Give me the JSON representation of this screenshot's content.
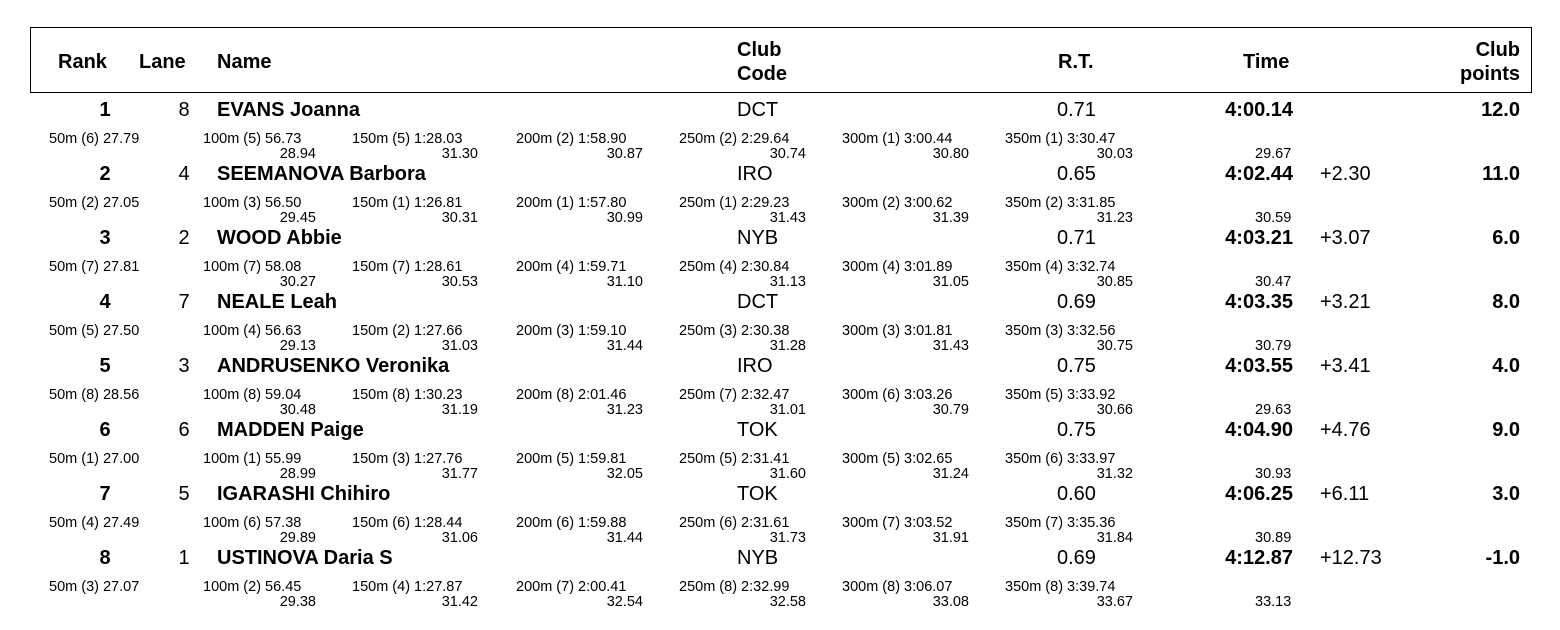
{
  "headers": {
    "rank": "Rank",
    "lane": "Lane",
    "name": "Name",
    "club_code_1": "Club",
    "club_code_2": "Code",
    "rt": "R.T.",
    "time": "Time",
    "club_points_1": "Club",
    "club_points_2": "points"
  },
  "rows": [
    {
      "rank": "1",
      "lane": "8",
      "name": "EVANS Joanna",
      "club": "DCT",
      "rt": "0.71",
      "time": "4:00.14",
      "behind": "",
      "points": "12.0",
      "splits": [
        {
          "cum": "50m (6) 27.79",
          "lap": ""
        },
        {
          "cum": "100m (5) 56.73",
          "lap": "28.94"
        },
        {
          "cum": "150m (5) 1:28.03",
          "lap": "31.30"
        },
        {
          "cum": "200m (2) 1:58.90",
          "lap": "30.87"
        },
        {
          "cum": "250m (2) 2:29.64",
          "lap": "30.74"
        },
        {
          "cum": "300m (1) 3:00.44",
          "lap": "30.80"
        },
        {
          "cum": "350m (1) 3:30.47",
          "lap": "30.03"
        },
        {
          "cum": "",
          "lap": "29.67"
        }
      ]
    },
    {
      "rank": "2",
      "lane": "4",
      "name": "SEEMANOVA Barbora",
      "club": "IRO",
      "rt": "0.65",
      "time": "4:02.44",
      "behind": "+2.30",
      "points": "11.0",
      "splits": [
        {
          "cum": "50m (2) 27.05",
          "lap": ""
        },
        {
          "cum": "100m (3) 56.50",
          "lap": "29.45"
        },
        {
          "cum": "150m (1) 1:26.81",
          "lap": "30.31"
        },
        {
          "cum": "200m (1) 1:57.80",
          "lap": "30.99"
        },
        {
          "cum": "250m (1) 2:29.23",
          "lap": "31.43"
        },
        {
          "cum": "300m (2) 3:00.62",
          "lap": "31.39"
        },
        {
          "cum": "350m (2) 3:31.85",
          "lap": "31.23"
        },
        {
          "cum": "",
          "lap": "30.59"
        }
      ]
    },
    {
      "rank": "3",
      "lane": "2",
      "name": "WOOD Abbie",
      "club": "NYB",
      "rt": "0.71",
      "time": "4:03.21",
      "behind": "+3.07",
      "points": "6.0",
      "splits": [
        {
          "cum": "50m (7) 27.81",
          "lap": ""
        },
        {
          "cum": "100m (7) 58.08",
          "lap": "30.27"
        },
        {
          "cum": "150m (7) 1:28.61",
          "lap": "30.53"
        },
        {
          "cum": "200m (4) 1:59.71",
          "lap": "31.10"
        },
        {
          "cum": "250m (4) 2:30.84",
          "lap": "31.13"
        },
        {
          "cum": "300m (4) 3:01.89",
          "lap": "31.05"
        },
        {
          "cum": "350m (4) 3:32.74",
          "lap": "30.85"
        },
        {
          "cum": "",
          "lap": "30.47"
        }
      ]
    },
    {
      "rank": "4",
      "lane": "7",
      "name": "NEALE Leah",
      "club": "DCT",
      "rt": "0.69",
      "time": "4:03.35",
      "behind": "+3.21",
      "points": "8.0",
      "splits": [
        {
          "cum": "50m (5) 27.50",
          "lap": ""
        },
        {
          "cum": "100m (4) 56.63",
          "lap": "29.13"
        },
        {
          "cum": "150m (2) 1:27.66",
          "lap": "31.03"
        },
        {
          "cum": "200m (3) 1:59.10",
          "lap": "31.44"
        },
        {
          "cum": "250m (3) 2:30.38",
          "lap": "31.28"
        },
        {
          "cum": "300m (3) 3:01.81",
          "lap": "31.43"
        },
        {
          "cum": "350m (3) 3:32.56",
          "lap": "30.75"
        },
        {
          "cum": "",
          "lap": "30.79"
        }
      ]
    },
    {
      "rank": "5",
      "lane": "3",
      "name": "ANDRUSENKO Veronika",
      "club": "IRO",
      "rt": "0.75",
      "time": "4:03.55",
      "behind": "+3.41",
      "points": "4.0",
      "splits": [
        {
          "cum": "50m (8) 28.56",
          "lap": ""
        },
        {
          "cum": "100m (8) 59.04",
          "lap": "30.48"
        },
        {
          "cum": "150m (8) 1:30.23",
          "lap": "31.19"
        },
        {
          "cum": "200m (8) 2:01.46",
          "lap": "31.23"
        },
        {
          "cum": "250m (7) 2:32.47",
          "lap": "31.01"
        },
        {
          "cum": "300m (6) 3:03.26",
          "lap": "30.79"
        },
        {
          "cum": "350m (5) 3:33.92",
          "lap": "30.66"
        },
        {
          "cum": "",
          "lap": "29.63"
        }
      ]
    },
    {
      "rank": "6",
      "lane": "6",
      "name": "MADDEN Paige",
      "club": "TOK",
      "rt": "0.75",
      "time": "4:04.90",
      "behind": "+4.76",
      "points": "9.0",
      "splits": [
        {
          "cum": "50m (1) 27.00",
          "lap": ""
        },
        {
          "cum": "100m (1) 55.99",
          "lap": "28.99"
        },
        {
          "cum": "150m (3) 1:27.76",
          "lap": "31.77"
        },
        {
          "cum": "200m (5) 1:59.81",
          "lap": "32.05"
        },
        {
          "cum": "250m (5) 2:31.41",
          "lap": "31.60"
        },
        {
          "cum": "300m (5) 3:02.65",
          "lap": "31.24"
        },
        {
          "cum": "350m (6) 3:33.97",
          "lap": "31.32"
        },
        {
          "cum": "",
          "lap": "30.93"
        }
      ]
    },
    {
      "rank": "7",
      "lane": "5",
      "name": "IGARASHI Chihiro",
      "club": "TOK",
      "rt": "0.60",
      "time": "4:06.25",
      "behind": "+6.11",
      "points": "3.0",
      "splits": [
        {
          "cum": "50m (4) 27.49",
          "lap": ""
        },
        {
          "cum": "100m (6) 57.38",
          "lap": "29.89"
        },
        {
          "cum": "150m (6) 1:28.44",
          "lap": "31.06"
        },
        {
          "cum": "200m (6) 1:59.88",
          "lap": "31.44"
        },
        {
          "cum": "250m (6) 2:31.61",
          "lap": "31.73"
        },
        {
          "cum": "300m (7) 3:03.52",
          "lap": "31.91"
        },
        {
          "cum": "350m (7) 3:35.36",
          "lap": "31.84"
        },
        {
          "cum": "",
          "lap": "30.89"
        }
      ]
    },
    {
      "rank": "8",
      "lane": "1",
      "name": "USTINOVA Daria S",
      "club": "NYB",
      "rt": "0.69",
      "time": "4:12.87",
      "behind": "+12.73",
      "points": "-1.0",
      "splits": [
        {
          "cum": "50m (3) 27.07",
          "lap": ""
        },
        {
          "cum": "100m (2) 56.45",
          "lap": "29.38"
        },
        {
          "cum": "150m (4) 1:27.87",
          "lap": "31.42"
        },
        {
          "cum": "200m (7) 2:00.41",
          "lap": "32.54"
        },
        {
          "cum": "250m (8) 2:32.99",
          "lap": "32.58"
        },
        {
          "cum": "300m (8) 3:06.07",
          "lap": "33.08"
        },
        {
          "cum": "350m (8) 3:39.74",
          "lap": "33.67"
        },
        {
          "cum": "",
          "lap": "33.13"
        }
      ]
    }
  ]
}
